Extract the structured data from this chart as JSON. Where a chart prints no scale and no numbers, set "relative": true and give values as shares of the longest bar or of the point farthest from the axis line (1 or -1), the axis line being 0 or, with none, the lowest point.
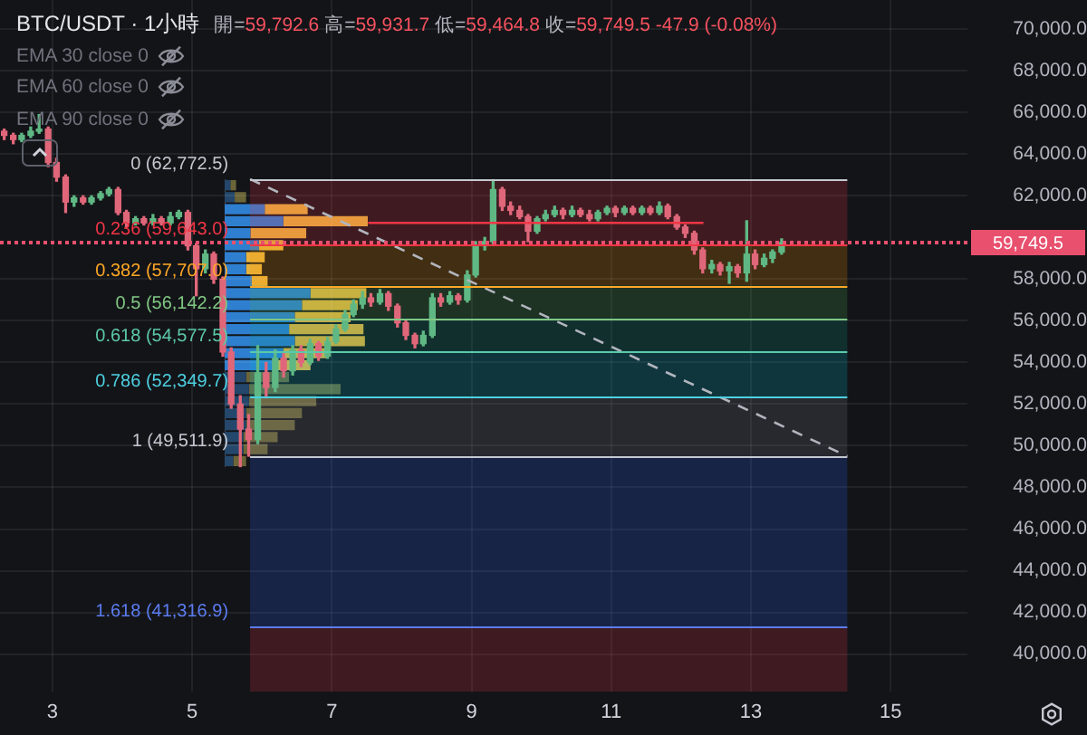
{
  "chart_data": [
    {
      "type": "candlestick",
      "title": "BTC/USDT · 1小時",
      "subtitle": "開=59,792.6 高=59,931.7 低=59,464.8 收=59,749.5 -47.9 (-0.08%)",
      "annotations": [
        "EMA 30 close 0",
        "EMA 60 close 0",
        "EMA 90 close 0"
      ],
      "x": [
        2.31,
        2.44,
        2.56,
        2.69,
        2.81,
        2.94,
        3.06,
        3.19,
        3.31,
        3.44,
        3.56,
        3.69,
        3.81,
        3.94,
        4.06,
        4.19,
        4.31,
        4.44,
        4.56,
        4.69,
        4.81,
        4.94,
        5.06,
        5.19,
        5.31,
        5.44,
        5.56,
        5.69,
        5.81,
        5.94,
        6.06,
        6.19,
        6.31,
        6.44,
        6.56,
        6.69,
        6.81,
        6.94,
        7.06,
        7.19,
        7.31,
        7.44,
        7.56,
        7.69,
        7.81,
        7.94,
        8.06,
        8.19,
        8.31,
        8.44,
        8.56,
        8.69,
        8.81,
        8.94,
        9.06,
        9.19,
        9.31,
        9.44,
        9.56,
        9.69,
        9.81,
        9.94,
        10.06,
        10.19,
        10.31,
        10.44,
        10.56,
        10.69,
        10.81,
        10.94,
        11.06,
        11.19,
        11.31,
        11.44,
        11.56,
        11.69,
        11.81,
        11.94,
        12.06,
        12.19,
        12.31,
        12.44,
        12.56,
        12.69,
        12.81,
        12.94,
        13.06,
        13.19,
        13.31,
        13.44
      ],
      "ohlc": [
        [
          65100,
          65200,
          64700,
          64900
        ],
        [
          64900,
          65000,
          64500,
          64700
        ],
        [
          64700,
          65000,
          64600,
          64900
        ],
        [
          64900,
          65300,
          64800,
          65100
        ],
        [
          65100,
          65900,
          65000,
          65200
        ],
        [
          65200,
          65300,
          63400,
          63600
        ],
        [
          63600,
          63800,
          62700,
          62900
        ],
        [
          62900,
          63000,
          61200,
          61700
        ],
        [
          61700,
          62000,
          61500,
          61900
        ],
        [
          61900,
          62000,
          61600,
          61700
        ],
        [
          61700,
          62000,
          61600,
          61900
        ],
        [
          61900,
          62200,
          61800,
          62100
        ],
        [
          62100,
          62400,
          62000,
          62300
        ],
        [
          62300,
          62400,
          61100,
          61200
        ],
        [
          61200,
          61300,
          60500,
          60700
        ],
        [
          60700,
          61000,
          60600,
          60900
        ],
        [
          60900,
          61000,
          60600,
          60700
        ],
        [
          60700,
          61100,
          60600,
          60900
        ],
        [
          60900,
          61000,
          60600,
          60700
        ],
        [
          60700,
          61200,
          60600,
          61000
        ],
        [
          61000,
          61300,
          60900,
          61200
        ],
        [
          61200,
          61300,
          59400,
          59600
        ],
        [
          59600,
          59700,
          57200,
          58500
        ],
        [
          58500,
          59400,
          58300,
          59200
        ],
        [
          59200,
          59300,
          57800,
          58000
        ],
        [
          58000,
          58100,
          54300,
          54500
        ],
        [
          54500,
          54700,
          51800,
          52000
        ],
        [
          52000,
          52400,
          49000,
          50800
        ],
        [
          50800,
          51500,
          49500,
          50300
        ],
        [
          50300,
          54800,
          50100,
          53500
        ],
        [
          53500,
          54000,
          52300,
          52800
        ],
        [
          52800,
          54600,
          52600,
          54200
        ],
        [
          54200,
          54500,
          53300,
          53600
        ],
        [
          53600,
          54800,
          53400,
          54600
        ],
        [
          54600,
          54800,
          53800,
          54000
        ],
        [
          54000,
          55100,
          53900,
          54900
        ],
        [
          54900,
          55000,
          54100,
          54300
        ],
        [
          54300,
          55200,
          54200,
          55000
        ],
        [
          55000,
          55800,
          54900,
          55600
        ],
        [
          55600,
          56500,
          55500,
          56300
        ],
        [
          56300,
          57000,
          56200,
          56800
        ],
        [
          56800,
          57400,
          56600,
          57100
        ],
        [
          57100,
          57300,
          56700,
          56900
        ],
        [
          56900,
          57500,
          56800,
          57300
        ],
        [
          57300,
          57400,
          56500,
          56700
        ],
        [
          56700,
          56800,
          55700,
          55900
        ],
        [
          55900,
          56000,
          55100,
          55300
        ],
        [
          55300,
          55400,
          54700,
          54900
        ],
        [
          54900,
          55500,
          54800,
          55300
        ],
        [
          55300,
          57300,
          55200,
          57100
        ],
        [
          57100,
          57300,
          56700,
          56900
        ],
        [
          56900,
          57400,
          56800,
          57200
        ],
        [
          57200,
          57300,
          56800,
          57000
        ],
        [
          57000,
          58400,
          56900,
          58200
        ],
        [
          58200,
          59800,
          58100,
          59600
        ],
        [
          59600,
          60000,
          59400,
          59800
        ],
        [
          59800,
          62772.5,
          59700,
          62300
        ],
        [
          62300,
          62400,
          61300,
          61500
        ],
        [
          61500,
          61700,
          61100,
          61300
        ],
        [
          61300,
          61500,
          60900,
          61000
        ],
        [
          61000,
          61100,
          59800,
          60300
        ],
        [
          60300,
          61000,
          60200,
          60900
        ],
        [
          60900,
          61300,
          60800,
          61100
        ],
        [
          61100,
          61500,
          61000,
          61300
        ],
        [
          61300,
          61400,
          60900,
          61100
        ],
        [
          61100,
          61500,
          61000,
          61300
        ],
        [
          61300,
          61400,
          61000,
          61100
        ],
        [
          61100,
          61300,
          60800,
          60900
        ],
        [
          60900,
          61300,
          60800,
          61200
        ],
        [
          61200,
          61500,
          61100,
          61400
        ],
        [
          61400,
          61500,
          61000,
          61200
        ],
        [
          61200,
          61500,
          61100,
          61400
        ],
        [
          61400,
          61500,
          61100,
          61200
        ],
        [
          61200,
          61500,
          61100,
          61400
        ],
        [
          61400,
          61500,
          61100,
          61200
        ],
        [
          61200,
          61700,
          61100,
          61500
        ],
        [
          61500,
          61600,
          60900,
          61000
        ],
        [
          61000,
          61100,
          60400,
          60500
        ],
        [
          60500,
          60600,
          60000,
          60200
        ],
        [
          60200,
          60300,
          59200,
          59400
        ],
        [
          59400,
          59500,
          58300,
          58500
        ],
        [
          58500,
          58900,
          58300,
          58700
        ],
        [
          58700,
          58800,
          58200,
          58400
        ],
        [
          58400,
          58800,
          57800,
          58600
        ],
        [
          58600,
          58700,
          58100,
          58300
        ],
        [
          58300,
          60800,
          57900,
          59200
        ],
        [
          59200,
          59400,
          58500,
          58700
        ],
        [
          58700,
          59200,
          58600,
          59000
        ],
        [
          59000,
          59400,
          58800,
          59300
        ],
        [
          59300,
          59931.7,
          59200,
          59749.5
        ]
      ],
      "colors": [
        "#e0677a",
        "#e0677a",
        "#5fb884",
        "#5fb884",
        "#5fb884",
        "#e0677a",
        "#e0677a",
        "#e0677a",
        "#5fb884",
        "#e0677a",
        "#5fb884",
        "#5fb884",
        "#5fb884",
        "#e0677a",
        "#e0677a",
        "#5fb884",
        "#e0677a",
        "#5fb884",
        "#e0677a",
        "#5fb884",
        "#5fb884",
        "#e0677a",
        "#e0677a",
        "#5fb884",
        "#e0677a",
        "#e0677a",
        "#e0677a",
        "#e0677a",
        "#e0677a",
        "#5fb884",
        "#e0677a",
        "#5fb884",
        "#e0677a",
        "#5fb884",
        "#e0677a",
        "#5fb884",
        "#e0677a",
        "#5fb884",
        "#5fb884",
        "#5fb884",
        "#5fb884",
        "#5fb884",
        "#e0677a",
        "#5fb884",
        "#e0677a",
        "#e0677a",
        "#e0677a",
        "#e0677a",
        "#5fb884",
        "#5fb884",
        "#e0677a",
        "#5fb884",
        "#e0677a",
        "#5fb884",
        "#5fb884",
        "#5fb884",
        "#5fb884",
        "#e0677a",
        "#e0677a",
        "#e0677a",
        "#e0677a",
        "#5fb884",
        "#5fb884",
        "#5fb884",
        "#e0677a",
        "#5fb884",
        "#e0677a",
        "#e0677a",
        "#5fb884",
        "#5fb884",
        "#e0677a",
        "#5fb884",
        "#e0677a",
        "#5fb884",
        "#e0677a",
        "#5fb884",
        "#e0677a",
        "#e0677a",
        "#e0677a",
        "#e0677a",
        "#e0677a",
        "#5fb884",
        "#e0677a",
        "#5fb884",
        "#e0677a",
        "#5fb884",
        "#e0677a",
        "#5fb884",
        "#5fb884",
        "#5fb884"
      ],
      "series": [
        {
          "type": "line",
          "x": [
            5.83,
            14.38
          ],
          "values": [
            62800,
            49500
          ],
          "color": "#b2b5be",
          "line_style": "dashed"
        },
        {
          "type": "line",
          "x": [
            7.52,
            12.32
          ],
          "values": [
            60700,
            60700
          ],
          "color": "#f23645"
        }
      ],
      "xlim": [
        2.25,
        16.1
      ],
      "xticks": [
        3,
        5,
        7,
        9,
        11,
        13,
        15
      ],
      "ylim": [
        38200,
        71400
      ],
      "yticks": [
        {
          "value": 40000,
          "label": "40,000.0"
        },
        {
          "value": 42000,
          "label": "42,000.0"
        },
        {
          "value": 44000,
          "label": "44,000.0"
        },
        {
          "value": 46000,
          "label": "46,000.0"
        },
        {
          "value": 48000,
          "label": "48,000.0"
        },
        {
          "value": 50000,
          "label": "50,000.0"
        },
        {
          "value": 52000,
          "label": "52,000.0"
        },
        {
          "value": 54000,
          "label": "54,000.0"
        },
        {
          "value": 56000,
          "label": "56,000.0"
        },
        {
          "value": 58000,
          "label": "58,000.0"
        },
        {
          "value": 62000,
          "label": "62,000.0"
        },
        {
          "value": 64000,
          "label": "64,000.0"
        },
        {
          "value": 66000,
          "label": "66,000.0"
        },
        {
          "value": 68000,
          "label": "68,000.0"
        },
        {
          "value": 70000,
          "label": "70,000.0"
        }
      ],
      "grid": true,
      "bands": [
        {
          "axis": "y",
          "from": 62772.5,
          "to": 59643.0,
          "color": "#f23645"
        },
        {
          "axis": "y",
          "from": 59643.0,
          "to": 57707.0,
          "color": "#ff9800"
        },
        {
          "axis": "y",
          "from": 57707.0,
          "to": 56142.2,
          "color": "#4caf50"
        },
        {
          "axis": "y",
          "from": 56142.2,
          "to": 54577.5,
          "color": "#089981"
        },
        {
          "axis": "y",
          "from": 54577.5,
          "to": 52349.7,
          "color": "#00bcd4"
        },
        {
          "axis": "y",
          "from": 52349.7,
          "to": 49511.9,
          "color": "#787b86"
        },
        {
          "axis": "y",
          "from": 49511.9,
          "to": 41316.9,
          "color": "#2962ff"
        },
        {
          "axis": "y",
          "from": 41316.9,
          "to": 38200,
          "color": "#f23645"
        }
      ],
      "ref_lines": [
        {
          "axis": "y",
          "value": 62772.5,
          "label": "0 (62,772.5)",
          "color": "#c5c8d0"
        },
        {
          "axis": "y",
          "value": 59643.0,
          "label": "0.236 (59,643.0)",
          "color": "#f23645"
        },
        {
          "axis": "y",
          "value": 57707.0,
          "label": "0.382 (57,707.0)",
          "color": "#ffa726"
        },
        {
          "axis": "y",
          "value": 56142.2,
          "label": "0.5 (56,142.2)",
          "color": "#81c784"
        },
        {
          "axis": "y",
          "value": 54577.5,
          "label": "0.618 (54,577.5)",
          "color": "#5cc9a7"
        },
        {
          "axis": "y",
          "value": 52349.7,
          "label": "0.786 (52,349.7)",
          "color": "#4dd0e1"
        },
        {
          "axis": "y",
          "value": 49511.9,
          "label": "1 (49,511.9)",
          "color": "#c5c8d0"
        },
        {
          "axis": "y",
          "value": 41316.9,
          "label": "1.618 (41,316.9)",
          "color": "#5b7cf0"
        },
        {
          "axis": "y",
          "value": 59749.5,
          "label": "59,749.5",
          "color": "#e8506e",
          "line_style": "dotted"
        }
      ]
    },
    {
      "type": "bar",
      "orientation": "horizontal",
      "stacked": true,
      "relative": true,
      "categories": [
        null,
        null,
        null,
        null,
        null,
        null,
        null,
        null,
        null,
        null,
        null,
        null,
        null,
        null,
        null,
        null,
        null,
        null,
        null,
        null,
        null,
        null,
        null,
        null
      ],
      "series": [
        {
          "values": [
            0.04,
            0.07,
            0.28,
            0.41,
            0.18,
            0.24,
            0.15,
            0.15,
            0.19,
            0.6,
            0.54,
            0.49,
            0.45,
            0.49,
            0.41,
            0.36,
            0.15,
            0.17,
            0.17,
            0.15,
            0.15,
            0.13,
            0.13,
            0.06
          ],
          "colors": [
            "#24476b",
            "#24476b",
            "#2f7fd0",
            "#2f7fd0",
            "#2f7fd0",
            "#2f7fd0",
            "#2f7fd0",
            "#2f7fd0",
            "#2f7fd0",
            "#2f7fd0",
            "#2f7fd0",
            "#2f7fd0",
            "#2f7fd0",
            "#2f7fd0",
            "#2f7fd0",
            "#2f7fd0",
            "#24476b",
            "#24476b",
            "#24476b",
            "#24476b",
            "#24476b",
            "#24476b",
            "#24476b",
            "#24476b"
          ]
        },
        {
          "values": [
            0.04,
            0.08,
            0.3,
            0.59,
            0.39,
            0.17,
            0.13,
            0.11,
            0.11,
            0.39,
            0.39,
            0.39,
            0.52,
            0.49,
            0.3,
            0.24,
            0.3,
            0.64,
            0.47,
            0.39,
            0.34,
            0.24,
            0.17,
            0.09
          ],
          "colors": [
            "#6b6538",
            "#6b6538",
            "#e6b23c",
            "#e6b23c",
            "#e6b23c",
            "#e6b23c",
            "#e6b23c",
            "#e6b23c",
            "#e6b23c",
            "#e6b23c",
            "#e6b23c",
            "#e6b23c",
            "#e6b23c",
            "#e6b23c",
            "#e6b23c",
            "#e6b23c",
            "#6b6538",
            "#6b6538",
            "#6b6538",
            "#6b6538",
            "#6b6538",
            "#6b6538",
            "#6b6538",
            "#6b6538"
          ]
        }
      ]
    }
  ]
}
